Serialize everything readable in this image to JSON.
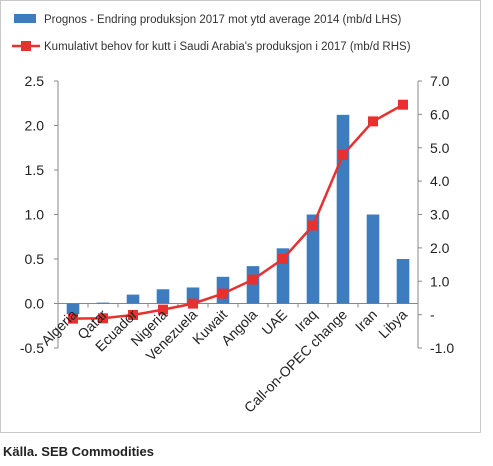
{
  "chart_data": {
    "type": "bar",
    "categories": [
      "Algeria",
      "Qatar",
      "Ecuador",
      "Nigeria",
      "Venezuela",
      "Kuwait",
      "Angola",
      "UAE",
      "Iraq",
      "Call-on-OPEC change",
      "Iran",
      "Libya"
    ],
    "series": [
      {
        "name": "Prognos - Endring produksjon 2017 mot ytd average 2014 (mb/d LHS)",
        "type": "bar",
        "axis": "left",
        "color": "#3d7dbf",
        "values": [
          -0.12,
          0.01,
          0.1,
          0.16,
          0.18,
          0.3,
          0.42,
          0.62,
          1.0,
          2.12,
          1.0,
          0.5
        ]
      },
      {
        "name": "Kumulativt behov for kutt i Saudi Arabia's produksjon i 2017 (mb/d RHS)",
        "type": "line",
        "axis": "right",
        "color": "#e8312f",
        "values": [
          -0.12,
          -0.11,
          -0.01,
          0.15,
          0.33,
          0.63,
          1.05,
          1.67,
          2.67,
          4.79,
          5.79,
          6.29
        ]
      }
    ],
    "y_left": {
      "min": -0.5,
      "max": 2.5,
      "ticks": [
        "2.5",
        "2.0",
        "1.5",
        "1.0",
        "0.5",
        "0.0",
        "-0.5"
      ]
    },
    "y_right": {
      "min": -1.0,
      "max": 7.0,
      "ticks": [
        "7.0",
        "6.0",
        "5.0",
        "4.0",
        "3.0",
        "2.0",
        "1.0",
        "-",
        "-1.0"
      ]
    },
    "legend_position": "top-left",
    "grid": false
  },
  "source_text": "Källa. SEB Commodities"
}
